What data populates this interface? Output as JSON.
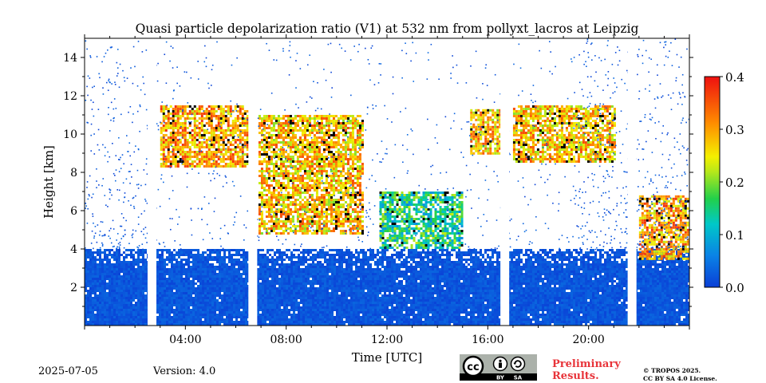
{
  "chart_data": {
    "type": "heatmap",
    "title": "Quasi particle depolarization ratio (V1) at 532 nm from pollyxt_lacros at Leipzig",
    "xlabel": "Time [UTC]",
    "ylabel": "Height [km]",
    "xlim_hours": [
      0,
      24
    ],
    "ylim": [
      0,
      15
    ],
    "x_ticks": [
      "04:00",
      "08:00",
      "12:00",
      "16:00",
      "20:00"
    ],
    "x_tick_hours": [
      4,
      8,
      12,
      16,
      20
    ],
    "y_ticks": [
      2,
      4,
      6,
      8,
      10,
      12,
      14
    ],
    "colorbar": {
      "min": 0.0,
      "max": 0.4,
      "ticks": [
        "0.0",
        "0.1",
        "0.2",
        "0.3",
        "0.4"
      ],
      "colormap": "jet"
    },
    "data_gaps_hours": [
      [
        2.5,
        2.85
      ],
      [
        6.5,
        6.85
      ],
      [
        16.5,
        16.85
      ],
      [
        21.55,
        21.9
      ]
    ],
    "layers": [
      {
        "region": "boundary layer / lower troposphere",
        "time": [
          0,
          24
        ],
        "height": [
          0,
          4
        ],
        "value": 0.02
      },
      {
        "region": "cirrus",
        "time": [
          3.0,
          6.5
        ],
        "height": [
          8.3,
          11.5
        ],
        "value": 0.3
      },
      {
        "region": "cirrus",
        "time": [
          6.9,
          11.0
        ],
        "height": [
          4.8,
          11.0
        ],
        "value": 0.28
      },
      {
        "region": "cloud",
        "time": [
          11.7,
          15.0
        ],
        "height": [
          4.0,
          7.0
        ],
        "value": 0.15
      },
      {
        "region": "cirrus",
        "time": [
          15.3,
          16.5
        ],
        "height": [
          9.0,
          11.3
        ],
        "value": 0.28
      },
      {
        "region": "cirrus",
        "time": [
          17.0,
          21.0
        ],
        "height": [
          8.6,
          11.5
        ],
        "value": 0.28
      },
      {
        "region": "cloud",
        "time": [
          22.0,
          24.0
        ],
        "height": [
          3.5,
          6.8
        ],
        "value": 0.3
      }
    ]
  },
  "footer": {
    "date": "2025-07-05",
    "version": "Version: 4.0",
    "preliminary_line1": "Preliminary",
    "preliminary_line2": "Results.",
    "copyright_line1": "© TROPOS 2025.",
    "copyright_line2": "CC BY SA 4.0 License.",
    "cc_text": "cc",
    "by_text": "BY",
    "sa_text": "SA"
  }
}
